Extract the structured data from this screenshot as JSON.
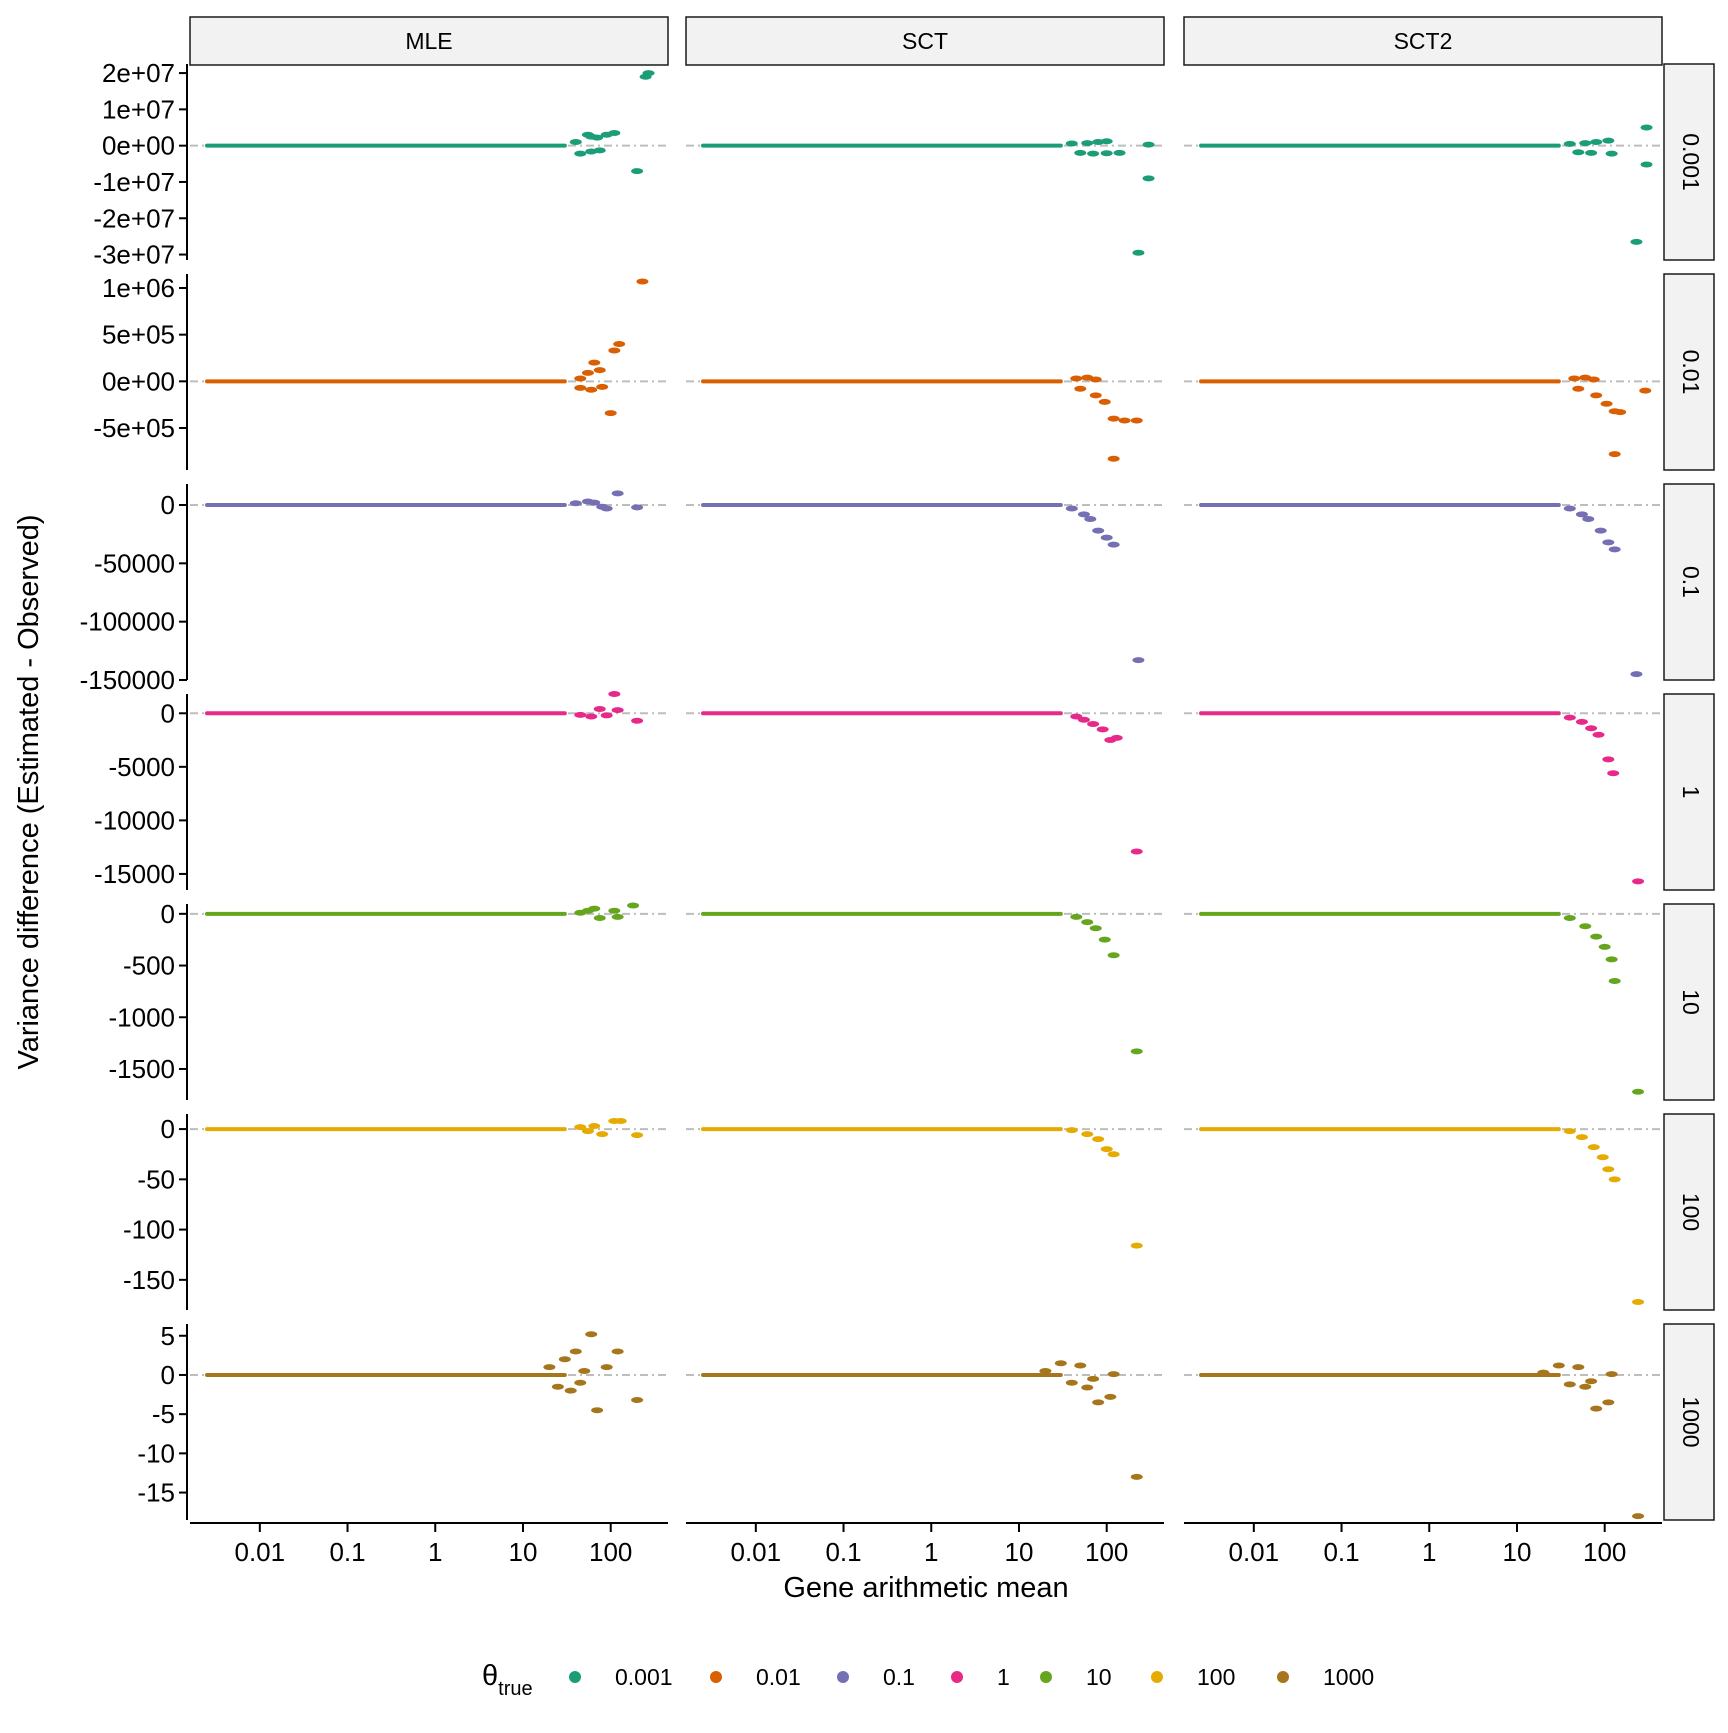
{
  "chart_data": {
    "type": "scatter",
    "title": "",
    "xlabel": "Gene arithmetic mean",
    "ylabel": "Variance difference (Estimated - Observed)",
    "x_scale": "log10",
    "xlim": [
      0.0016,
      450
    ],
    "x_ticks": [
      0.01,
      0.1,
      1,
      10,
      100
    ],
    "x_tick_labels": [
      "0.01",
      "0.1",
      "1",
      "10",
      "100"
    ],
    "reference_line_y": 0,
    "columns": [
      "MLE",
      "SCT",
      "SCT2"
    ],
    "rows": [
      {
        "label": "0.001",
        "color": "#1b9e77",
        "ylim": [
          -31500000,
          22500000
        ],
        "y_ticks": [
          20000000,
          10000000,
          0,
          -10000000,
          -20000000,
          -30000000
        ],
        "y_tick_labels": [
          "2e+07",
          "1e+07",
          "0e+00",
          "-1e+07",
          "-2e+07",
          "-3e+07"
        ],
        "panels": {
          "MLE": [
            [
              40,
              1000000
            ],
            [
              55,
              3000000
            ],
            [
              60,
              2500000
            ],
            [
              70,
              2200000
            ],
            [
              90,
              3000000
            ],
            [
              110,
              3500000
            ],
            [
              45,
              -2200000
            ],
            [
              60,
              -1600000
            ],
            [
              75,
              -1300000
            ],
            [
              200,
              -7000000
            ],
            [
              250,
              19000000
            ],
            [
              270,
              20000000
            ]
          ],
          "SCT": [
            [
              40,
              600000
            ],
            [
              60,
              700000
            ],
            [
              80,
              1000000
            ],
            [
              100,
              1200000
            ],
            [
              50,
              -2000000
            ],
            [
              70,
              -2200000
            ],
            [
              100,
              -2100000
            ],
            [
              140,
              -2000000
            ],
            [
              300,
              300000
            ],
            [
              300,
              -9000000
            ],
            [
              230,
              -29500000
            ]
          ],
          "SCT2": [
            [
              40,
              500000
            ],
            [
              60,
              700000
            ],
            [
              80,
              1000000
            ],
            [
              110,
              1400000
            ],
            [
              50,
              -1800000
            ],
            [
              70,
              -2000000
            ],
            [
              120,
              -2200000
            ],
            [
              300,
              5000000
            ],
            [
              300,
              -5200000
            ],
            [
              230,
              -26500000
            ]
          ]
        }
      },
      {
        "label": "0.01",
        "color": "#d95f02",
        "ylim": [
          -950000,
          1150000
        ],
        "y_ticks": [
          1000000,
          500000,
          0,
          -500000
        ],
        "y_tick_labels": [
          "1e+06",
          "5e+05",
          "0e+00",
          "-5e+05"
        ],
        "panels": {
          "MLE": [
            [
              45,
              30000
            ],
            [
              55,
              90000
            ],
            [
              65,
              200000
            ],
            [
              75,
              120000
            ],
            [
              100,
              -340000
            ],
            [
              110,
              330000
            ],
            [
              125,
              400000
            ],
            [
              45,
              -70000
            ],
            [
              60,
              -90000
            ],
            [
              80,
              -60000
            ],
            [
              230,
              1070000
            ]
          ],
          "SCT": [
            [
              45,
              30000
            ],
            [
              60,
              40000
            ],
            [
              75,
              20000
            ],
            [
              50,
              -80000
            ],
            [
              75,
              -150000
            ],
            [
              95,
              -220000
            ],
            [
              120,
              -400000
            ],
            [
              160,
              -420000
            ],
            [
              220,
              -420000
            ],
            [
              120,
              -830000
            ]
          ],
          "SCT2": [
            [
              45,
              30000
            ],
            [
              60,
              40000
            ],
            [
              75,
              20000
            ],
            [
              50,
              -80000
            ],
            [
              80,
              -150000
            ],
            [
              105,
              -240000
            ],
            [
              130,
              -320000
            ],
            [
              150,
              -330000
            ],
            [
              290,
              -100000
            ],
            [
              130,
              -780000
            ]
          ]
        }
      },
      {
        "label": "0.1",
        "color": "#7570b3",
        "ylim": [
          -150000,
          18000
        ],
        "y_ticks": [
          0,
          -50000,
          -100000,
          -150000
        ],
        "y_tick_labels": [
          "0",
          "-50000",
          "-100000",
          "-150000"
        ],
        "panels": {
          "MLE": [
            [
              40,
              1500
            ],
            [
              55,
              3000
            ],
            [
              65,
              2000
            ],
            [
              80,
              -1500
            ],
            [
              120,
              10000
            ],
            [
              200,
              -2000
            ],
            [
              90,
              -3000
            ]
          ],
          "SCT": [
            [
              40,
              -3000
            ],
            [
              55,
              -8000
            ],
            [
              65,
              -12000
            ],
            [
              80,
              -22000
            ],
            [
              100,
              -28000
            ],
            [
              120,
              -34000
            ],
            [
              230,
              -133000
            ]
          ],
          "SCT2": [
            [
              40,
              -3000
            ],
            [
              55,
              -8000
            ],
            [
              65,
              -12000
            ],
            [
              90,
              -22000
            ],
            [
              110,
              -32000
            ],
            [
              130,
              -38000
            ],
            [
              230,
              -145000
            ]
          ]
        }
      },
      {
        "label": "1",
        "color": "#e7298a",
        "ylim": [
          -16500,
          1800
        ],
        "y_ticks": [
          0,
          -5000,
          -10000,
          -15000
        ],
        "y_tick_labels": [
          "0",
          "-5000",
          "-10000",
          "-15000"
        ],
        "panels": {
          "MLE": [
            [
              45,
              -150
            ],
            [
              60,
              -300
            ],
            [
              75,
              400
            ],
            [
              90,
              -200
            ],
            [
              110,
              1800
            ],
            [
              120,
              300
            ],
            [
              200,
              -700
            ]
          ],
          "SCT": [
            [
              45,
              -300
            ],
            [
              55,
              -600
            ],
            [
              70,
              -1000
            ],
            [
              90,
              -1500
            ],
            [
              110,
              -2500
            ],
            [
              130,
              -2300
            ],
            [
              220,
              -12900
            ]
          ],
          "SCT2": [
            [
              40,
              -400
            ],
            [
              55,
              -800
            ],
            [
              70,
              -1400
            ],
            [
              85,
              -2000
            ],
            [
              110,
              -4300
            ],
            [
              125,
              -5600
            ],
            [
              240,
              -15700
            ]
          ]
        }
      },
      {
        "label": "10",
        "color": "#66a61e",
        "ylim": [
          -1800,
          95
        ],
        "y_ticks": [
          0,
          -500,
          -1000,
          -1500
        ],
        "y_tick_labels": [
          "0",
          "-500",
          "-1000",
          "-1500"
        ],
        "panels": {
          "MLE": [
            [
              45,
              10
            ],
            [
              55,
              30
            ],
            [
              65,
              50
            ],
            [
              75,
              -40
            ],
            [
              110,
              30
            ],
            [
              180,
              80
            ],
            [
              120,
              -30
            ]
          ],
          "SCT": [
            [
              45,
              -30
            ],
            [
              60,
              -80
            ],
            [
              75,
              -140
            ],
            [
              95,
              -250
            ],
            [
              120,
              -400
            ],
            [
              220,
              -1330
            ]
          ],
          "SCT2": [
            [
              40,
              -40
            ],
            [
              60,
              -120
            ],
            [
              80,
              -220
            ],
            [
              100,
              -320
            ],
            [
              120,
              -440
            ],
            [
              130,
              -650
            ],
            [
              240,
              -1720
            ]
          ]
        }
      },
      {
        "label": "100",
        "color": "#e6ab02",
        "ylim": [
          -180,
          15
        ],
        "y_ticks": [
          0,
          -50,
          -100,
          -150
        ],
        "y_tick_labels": [
          "0",
          "-50",
          "-100",
          "-150"
        ],
        "panels": {
          "MLE": [
            [
              45,
              2
            ],
            [
              55,
              -2
            ],
            [
              65,
              3
            ],
            [
              80,
              -5
            ],
            [
              110,
              8
            ],
            [
              130,
              8
            ],
            [
              200,
              -6
            ]
          ],
          "SCT": [
            [
              40,
              -1
            ],
            [
              60,
              -5
            ],
            [
              80,
              -10
            ],
            [
              100,
              -20
            ],
            [
              120,
              -25
            ],
            [
              220,
              -116
            ]
          ],
          "SCT2": [
            [
              40,
              -2
            ],
            [
              55,
              -8
            ],
            [
              75,
              -18
            ],
            [
              95,
              -28
            ],
            [
              110,
              -40
            ],
            [
              130,
              -50
            ],
            [
              240,
              -172
            ]
          ]
        }
      },
      {
        "label": "1000",
        "color": "#a6761d",
        "ylim": [
          -18.5,
          6.5
        ],
        "y_ticks": [
          5,
          0,
          -5,
          -10,
          -15
        ],
        "y_tick_labels": [
          "5",
          "0",
          "-5",
          "-10",
          "-15"
        ],
        "panels": {
          "MLE": [
            [
              20,
              1
            ],
            [
              25,
              -1.5
            ],
            [
              30,
              2
            ],
            [
              35,
              -2
            ],
            [
              40,
              3
            ],
            [
              45,
              -1
            ],
            [
              50,
              0.5
            ],
            [
              60,
              5.2
            ],
            [
              70,
              -4.5
            ],
            [
              90,
              1
            ],
            [
              120,
              3
            ],
            [
              200,
              -3.2
            ]
          ],
          "SCT": [
            [
              20,
              0.5
            ],
            [
              30,
              1.5
            ],
            [
              40,
              -1
            ],
            [
              50,
              1.2
            ],
            [
              60,
              -1.6
            ],
            [
              70,
              -0.5
            ],
            [
              80,
              -3.5
            ],
            [
              110,
              -2.8
            ],
            [
              120,
              0.1
            ],
            [
              220,
              -13
            ]
          ],
          "SCT2": [
            [
              20,
              0.3
            ],
            [
              30,
              1.2
            ],
            [
              40,
              -1.2
            ],
            [
              50,
              1
            ],
            [
              60,
              -1.5
            ],
            [
              70,
              -0.8
            ],
            [
              80,
              -4.3
            ],
            [
              110,
              -3.5
            ],
            [
              120,
              0.1
            ],
            [
              240,
              -18
            ]
          ]
        }
      }
    ],
    "legend": {
      "title_base": "θ",
      "title_sub": "true",
      "position": "bottom",
      "entries": [
        "0.001",
        "0.01",
        "0.1",
        "1",
        "10",
        "100",
        "1000"
      ]
    }
  }
}
